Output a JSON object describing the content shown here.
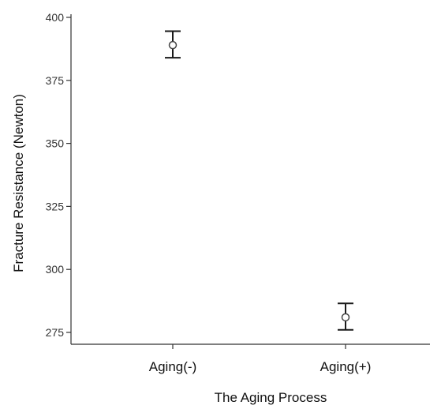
{
  "chart_data": {
    "type": "scatter",
    "title": "",
    "xlabel": "The Aging Process",
    "ylabel": "Fracture Resistance (Newton)",
    "categories": [
      "Aging(-)",
      "Aging(+)"
    ],
    "ylim": [
      270,
      400
    ],
    "yticks": [
      275,
      300,
      325,
      350,
      375,
      400
    ],
    "series": [
      {
        "values": [
          389,
          281
        ],
        "error_low": [
          384,
          276
        ],
        "error_high": [
          394.5,
          286.5
        ]
      }
    ],
    "grid": false,
    "legend": "none",
    "marker": "open-circle"
  }
}
